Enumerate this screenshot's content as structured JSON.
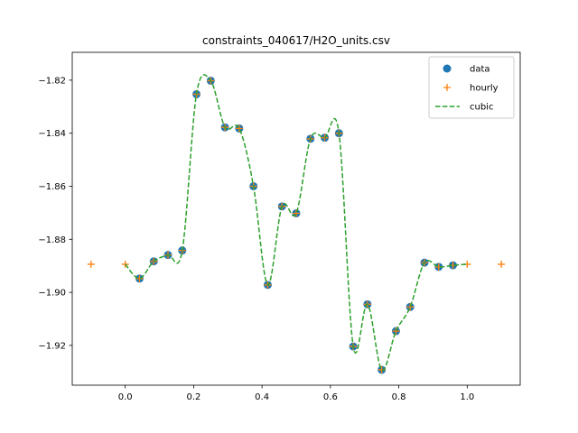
{
  "chart_data": {
    "type": "line",
    "title": "constraints_040617/H2O_units.csv",
    "xlabel": "",
    "ylabel": "",
    "xlim": [
      -0.155,
      1.155
    ],
    "ylim": [
      -1.935,
      -1.8095
    ],
    "xticks": [
      0.0,
      0.2,
      0.4,
      0.6,
      0.8,
      1.0
    ],
    "xtick_labels": [
      "0.0",
      "0.2",
      "0.4",
      "0.6",
      "0.8",
      "1.0"
    ],
    "yticks": [
      -1.92,
      -1.9,
      -1.88,
      -1.86,
      -1.84,
      -1.82
    ],
    "ytick_labels": [
      "−1.92",
      "−1.90",
      "−1.88",
      "−1.86",
      "−1.84",
      "−1.82"
    ],
    "grid": false,
    "legend_position": "top-right",
    "series": [
      {
        "name": "data",
        "style": "marker-circle",
        "color": "#1f77b4",
        "x": [
          0.0417,
          0.0833,
          0.125,
          0.1667,
          0.2083,
          0.25,
          0.2917,
          0.3333,
          0.375,
          0.4167,
          0.4583,
          0.5,
          0.5417,
          0.5833,
          0.625,
          0.6667,
          0.7083,
          0.75,
          0.7917,
          0.8333,
          0.875,
          0.9167,
          0.9583
        ],
        "y": [
          -1.8948,
          -1.8883,
          -1.8859,
          -1.8842,
          -1.8253,
          -1.8202,
          -1.8378,
          -1.8382,
          -1.86,
          -1.8972,
          -1.8676,
          -1.8702,
          -1.8421,
          -1.8417,
          -1.84,
          -1.9204,
          -1.9045,
          -1.9292,
          -1.9146,
          -1.9055,
          -1.8888,
          -1.8904,
          -1.8898
        ]
      },
      {
        "name": "hourly",
        "style": "marker-plus",
        "color": "#ff7f0e",
        "x": [
          -0.1,
          0.0,
          0.0417,
          0.0833,
          0.125,
          0.1667,
          0.2083,
          0.25,
          0.2917,
          0.3333,
          0.375,
          0.4167,
          0.4583,
          0.5,
          0.5417,
          0.5833,
          0.625,
          0.6667,
          0.7083,
          0.75,
          0.7917,
          0.8333,
          0.875,
          0.9167,
          0.9583,
          1.0,
          1.1
        ],
        "y": [
          -1.8894,
          -1.8894,
          -1.8948,
          -1.8883,
          -1.8859,
          -1.8842,
          -1.8253,
          -1.8202,
          -1.8378,
          -1.8382,
          -1.86,
          -1.8972,
          -1.8676,
          -1.8702,
          -1.8421,
          -1.8417,
          -1.84,
          -1.9204,
          -1.9045,
          -1.9292,
          -1.9146,
          -1.9055,
          -1.8888,
          -1.8904,
          -1.8898,
          -1.8894,
          -1.8894
        ]
      },
      {
        "name": "cubic",
        "style": "dashed-line",
        "color": "#2ca02c",
        "x": [
          0.0,
          0.0417,
          0.0833,
          0.125,
          0.1667,
          0.2083,
          0.25,
          0.2917,
          0.3333,
          0.375,
          0.4167,
          0.4583,
          0.5,
          0.5417,
          0.5833,
          0.625,
          0.6667,
          0.7083,
          0.75,
          0.7917,
          0.8333,
          0.875,
          0.9167,
          0.9583,
          1.0
        ],
        "y": [
          -1.8894,
          -1.8948,
          -1.8883,
          -1.8859,
          -1.8842,
          -1.8253,
          -1.8202,
          -1.8378,
          -1.8382,
          -1.86,
          -1.8972,
          -1.8676,
          -1.8702,
          -1.8421,
          -1.8417,
          -1.84,
          -1.9204,
          -1.9045,
          -1.9292,
          -1.9146,
          -1.9055,
          -1.8888,
          -1.8904,
          -1.8898,
          -1.8894
        ]
      }
    ]
  }
}
